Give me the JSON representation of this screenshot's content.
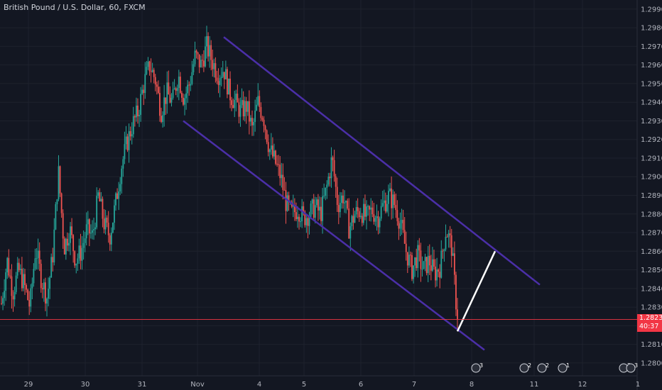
{
  "chart_title": "British Pound / U.S. Dollar, 60, FXCM",
  "colors": {
    "background": "#131722",
    "up": "#26a69a",
    "down": "#ef5350",
    "channel": "#4b2fa8",
    "projection": "#ffffff",
    "last_price_line": "#f23645",
    "grid": "#1e222d"
  },
  "chart_data": {
    "type": "candlestick",
    "y_axis": {
      "ticks": [
        "1.28000",
        "1.28100",
        "1.28200",
        "1.28300",
        "1.28400",
        "1.28500",
        "1.28600",
        "1.28700",
        "1.28800",
        "1.28900",
        "1.29000",
        "1.29100",
        "1.29200",
        "1.29300",
        "1.29400",
        "1.29500",
        "1.29600",
        "1.29700",
        "1.29800",
        "1.29900"
      ],
      "range": [
        1.2795,
        1.2993
      ]
    },
    "x_axis": {
      "ticks": [
        "29",
        "30",
        "31",
        "Nov",
        "4",
        "5",
        "6",
        "7",
        "8",
        "11",
        "12",
        "1"
      ]
    },
    "last_price": {
      "value": 1.28234,
      "label": "1.28234",
      "countdown": "40:37"
    },
    "path": [
      1.2832,
      1.2855,
      1.2838,
      1.285,
      1.2842,
      1.283,
      1.2862,
      1.2845,
      1.2835,
      1.2858,
      1.2903,
      1.2862,
      1.2872,
      1.2855,
      1.286,
      1.2872,
      1.2868,
      1.289,
      1.2875,
      1.2868,
      1.2885,
      1.2905,
      1.2918,
      1.2928,
      1.2935,
      1.295,
      1.296,
      1.2952,
      1.2935,
      1.2945,
      1.294,
      1.2955,
      1.2942,
      1.295,
      1.2965,
      1.296,
      1.297,
      1.2962,
      1.2955,
      1.2958,
      1.2945,
      1.294,
      1.2935,
      1.2938,
      1.2925,
      1.294,
      1.2932,
      1.2915,
      1.2908,
      1.29,
      1.2885,
      1.288,
      1.2883,
      1.2878,
      1.288,
      1.2884,
      1.288,
      1.2893,
      1.291,
      1.2885,
      1.289,
      1.2872,
      1.288,
      1.2882,
      1.2878,
      1.2882,
      1.2878,
      1.2885,
      1.289,
      1.2885,
      1.2875,
      1.286,
      1.285,
      1.2858,
      1.285,
      1.2855,
      1.2848,
      1.2852,
      1.2872,
      1.2862,
      1.2823
    ],
    "channel": {
      "upper": [
        {
          "x": "Nov 2",
          "y": 1.2975
        },
        {
          "x": "Nov 8",
          "y": 1.2842
        }
      ],
      "lower": [
        {
          "x": "Oct 31",
          "y": 1.293
        },
        {
          "x": "Nov 8",
          "y": 1.2807
        }
      ]
    },
    "projection": [
      {
        "x": "Nov 7",
        "y": 1.2817
      },
      {
        "x": "Nov 8",
        "y": 1.286
      }
    ],
    "event_markers": [
      "3",
      "2",
      "2",
      "1",
      "2",
      "3"
    ]
  }
}
